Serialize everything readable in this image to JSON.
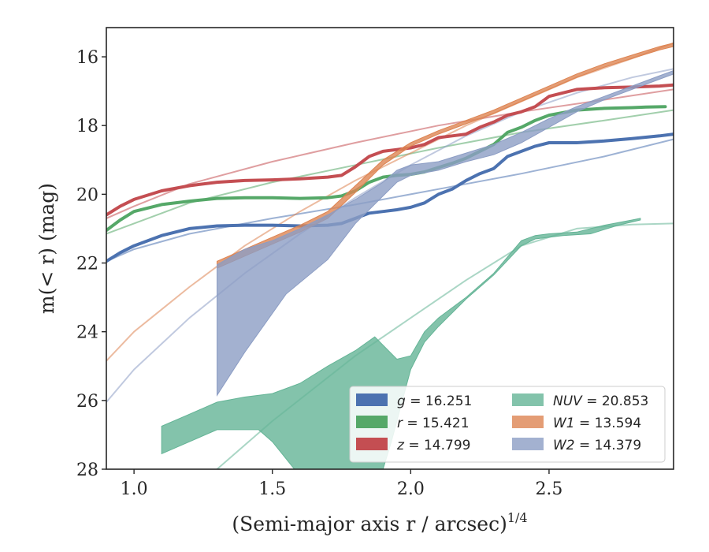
{
  "chart_data": {
    "type": "line",
    "xlabel": "(Semi-major axis r / arcsec)",
    "xlabel_superscript": "1/4",
    "ylabel": "m(< r) (mag)",
    "xlim": [
      0.9,
      2.95
    ],
    "ylim": [
      28,
      15.15
    ],
    "y_inverted": true,
    "x_ticks": [
      1.0,
      1.5,
      2.0,
      2.5
    ],
    "x_tick_labels": [
      "1.0",
      "1.5",
      "2.0",
      "2.5"
    ],
    "y_ticks": [
      16,
      18,
      20,
      22,
      24,
      26,
      28
    ],
    "y_tick_labels": [
      "16",
      "18",
      "20",
      "22",
      "24",
      "26",
      "28"
    ],
    "grid": false,
    "legend_position": "lower-right",
    "legend_columns": 2,
    "series": [
      {
        "name": "g = 16.251",
        "legend_var": "g",
        "legend_value": "= 16.251",
        "color": "#4c72b0",
        "kind": "line",
        "points": [
          [
            0.9,
            21.95
          ],
          [
            0.95,
            21.7
          ],
          [
            1.0,
            21.5
          ],
          [
            1.1,
            21.2
          ],
          [
            1.2,
            21.0
          ],
          [
            1.3,
            20.92
          ],
          [
            1.4,
            20.9
          ],
          [
            1.5,
            20.9
          ],
          [
            1.6,
            20.92
          ],
          [
            1.7,
            20.9
          ],
          [
            1.75,
            20.85
          ],
          [
            1.8,
            20.7
          ],
          [
            1.85,
            20.55
          ],
          [
            1.9,
            20.5
          ],
          [
            1.95,
            20.45
          ],
          [
            2.0,
            20.38
          ],
          [
            2.05,
            20.25
          ],
          [
            2.1,
            20.0
          ],
          [
            2.15,
            19.85
          ],
          [
            2.2,
            19.6
          ],
          [
            2.25,
            19.4
          ],
          [
            2.3,
            19.25
          ],
          [
            2.35,
            18.9
          ],
          [
            2.4,
            18.75
          ],
          [
            2.45,
            18.6
          ],
          [
            2.5,
            18.5
          ],
          [
            2.55,
            18.5
          ],
          [
            2.6,
            18.5
          ],
          [
            2.7,
            18.45
          ],
          [
            2.8,
            18.38
          ],
          [
            2.9,
            18.3
          ],
          [
            2.95,
            18.25
          ]
        ],
        "fit": [
          [
            0.9,
            21.95
          ],
          [
            1.0,
            21.6
          ],
          [
            1.2,
            21.15
          ],
          [
            1.5,
            20.7
          ],
          [
            1.8,
            20.3
          ],
          [
            2.1,
            19.85
          ],
          [
            2.4,
            19.4
          ],
          [
            2.7,
            18.9
          ],
          [
            2.95,
            18.4
          ]
        ]
      },
      {
        "name": "r = 15.421",
        "legend_var": "r",
        "legend_value": "= 15.421",
        "color": "#55a868",
        "kind": "line",
        "points": [
          [
            0.9,
            21.05
          ],
          [
            0.95,
            20.75
          ],
          [
            1.0,
            20.5
          ],
          [
            1.1,
            20.3
          ],
          [
            1.2,
            20.2
          ],
          [
            1.3,
            20.12
          ],
          [
            1.4,
            20.1
          ],
          [
            1.5,
            20.1
          ],
          [
            1.6,
            20.12
          ],
          [
            1.7,
            20.1
          ],
          [
            1.75,
            20.05
          ],
          [
            1.8,
            19.9
          ],
          [
            1.85,
            19.65
          ],
          [
            1.9,
            19.5
          ],
          [
            1.95,
            19.45
          ],
          [
            2.0,
            19.42
          ],
          [
            2.05,
            19.35
          ],
          [
            2.1,
            19.22
          ],
          [
            2.15,
            19.1
          ],
          [
            2.2,
            18.95
          ],
          [
            2.25,
            18.75
          ],
          [
            2.3,
            18.55
          ],
          [
            2.35,
            18.2
          ],
          [
            2.4,
            18.05
          ],
          [
            2.45,
            17.85
          ],
          [
            2.5,
            17.7
          ],
          [
            2.6,
            17.55
          ],
          [
            2.7,
            17.5
          ],
          [
            2.8,
            17.48
          ],
          [
            2.85,
            17.46
          ],
          [
            2.92,
            17.45
          ]
        ],
        "fit": [
          [
            0.9,
            21.15
          ],
          [
            1.0,
            20.85
          ],
          [
            1.2,
            20.25
          ],
          [
            1.5,
            19.65
          ],
          [
            1.8,
            19.15
          ],
          [
            2.1,
            18.65
          ],
          [
            2.4,
            18.2
          ],
          [
            2.7,
            17.85
          ],
          [
            2.95,
            17.55
          ]
        ]
      },
      {
        "name": "z = 14.799",
        "legend_var": "z",
        "legend_value": "= 14.799",
        "color": "#c44e52",
        "kind": "line",
        "points": [
          [
            0.9,
            20.6
          ],
          [
            0.95,
            20.35
          ],
          [
            1.0,
            20.15
          ],
          [
            1.1,
            19.9
          ],
          [
            1.2,
            19.75
          ],
          [
            1.3,
            19.65
          ],
          [
            1.4,
            19.6
          ],
          [
            1.5,
            19.58
          ],
          [
            1.6,
            19.55
          ],
          [
            1.7,
            19.5
          ],
          [
            1.75,
            19.45
          ],
          [
            1.8,
            19.2
          ],
          [
            1.85,
            18.9
          ],
          [
            1.9,
            18.75
          ],
          [
            1.95,
            18.7
          ],
          [
            2.0,
            18.65
          ],
          [
            2.05,
            18.55
          ],
          [
            2.1,
            18.35
          ],
          [
            2.15,
            18.3
          ],
          [
            2.2,
            18.25
          ],
          [
            2.25,
            18.05
          ],
          [
            2.3,
            17.9
          ],
          [
            2.35,
            17.7
          ],
          [
            2.4,
            17.6
          ],
          [
            2.45,
            17.45
          ],
          [
            2.5,
            17.15
          ],
          [
            2.55,
            17.05
          ],
          [
            2.6,
            16.95
          ],
          [
            2.7,
            16.9
          ],
          [
            2.8,
            16.88
          ],
          [
            2.9,
            16.85
          ],
          [
            2.95,
            16.82
          ]
        ],
        "fit": [
          [
            0.9,
            20.7
          ],
          [
            1.0,
            20.35
          ],
          [
            1.2,
            19.7
          ],
          [
            1.5,
            19.05
          ],
          [
            1.8,
            18.5
          ],
          [
            2.1,
            18.0
          ],
          [
            2.4,
            17.6
          ],
          [
            2.7,
            17.25
          ],
          [
            2.95,
            16.95
          ]
        ]
      },
      {
        "name": "NUV = 20.853",
        "legend_var": "NUV",
        "legend_value": "= 20.853",
        "color": "#64b496",
        "kind": "band",
        "upper": [
          [
            1.1,
            26.75
          ],
          [
            1.2,
            26.4
          ],
          [
            1.3,
            26.05
          ],
          [
            1.4,
            25.9
          ],
          [
            1.5,
            25.8
          ],
          [
            1.6,
            25.5
          ],
          [
            1.7,
            25.0
          ],
          [
            1.8,
            24.55
          ],
          [
            1.87,
            24.15
          ],
          [
            1.95,
            24.8
          ],
          [
            2.0,
            24.7
          ],
          [
            2.05,
            24.0
          ],
          [
            2.1,
            23.6
          ],
          [
            2.2,
            23.0
          ],
          [
            2.3,
            22.3
          ],
          [
            2.4,
            21.35
          ],
          [
            2.45,
            21.2
          ],
          [
            2.5,
            21.15
          ],
          [
            2.6,
            21.1
          ],
          [
            2.7,
            20.9
          ],
          [
            2.8,
            20.75
          ],
          [
            2.83,
            20.7
          ]
        ],
        "lower": [
          [
            2.83,
            20.75
          ],
          [
            2.75,
            20.9
          ],
          [
            2.65,
            21.15
          ],
          [
            2.55,
            21.2
          ],
          [
            2.45,
            21.3
          ],
          [
            2.4,
            21.5
          ],
          [
            2.3,
            22.35
          ],
          [
            2.2,
            23.05
          ],
          [
            2.1,
            23.85
          ],
          [
            2.05,
            24.3
          ],
          [
            2.0,
            25.1
          ],
          [
            1.97,
            26.0
          ],
          [
            1.93,
            27.2
          ],
          [
            1.9,
            28.0
          ],
          [
            1.58,
            28.0
          ],
          [
            1.5,
            27.2
          ],
          [
            1.45,
            26.85
          ],
          [
            1.3,
            26.85
          ],
          [
            1.1,
            27.55
          ]
        ],
        "fit": [
          [
            1.3,
            28.0
          ],
          [
            1.5,
            26.6
          ],
          [
            1.8,
            24.7
          ],
          [
            2.0,
            23.6
          ],
          [
            2.2,
            22.5
          ],
          [
            2.4,
            21.5
          ],
          [
            2.6,
            21.0
          ],
          [
            2.8,
            20.88
          ],
          [
            2.95,
            20.85
          ]
        ]
      },
      {
        "name": "W1 = 13.594",
        "legend_var": "W1",
        "legend_value": "= 13.594",
        "color": "#dd8452",
        "kind": "band",
        "upper": [
          [
            1.3,
            21.95
          ],
          [
            1.4,
            21.6
          ],
          [
            1.5,
            21.25
          ],
          [
            1.6,
            20.9
          ],
          [
            1.7,
            20.5
          ],
          [
            1.8,
            19.75
          ],
          [
            1.9,
            19.0
          ],
          [
            2.0,
            18.5
          ],
          [
            2.1,
            18.15
          ],
          [
            2.2,
            17.85
          ],
          [
            2.3,
            17.55
          ],
          [
            2.4,
            17.2
          ],
          [
            2.5,
            16.85
          ],
          [
            2.6,
            16.5
          ],
          [
            2.7,
            16.2
          ],
          [
            2.8,
            15.95
          ],
          [
            2.9,
            15.7
          ],
          [
            2.95,
            15.6
          ]
        ],
        "lower": [
          [
            2.95,
            15.7
          ],
          [
            2.9,
            15.8
          ],
          [
            2.8,
            16.05
          ],
          [
            2.7,
            16.3
          ],
          [
            2.6,
            16.6
          ],
          [
            2.5,
            16.95
          ],
          [
            2.4,
            17.3
          ],
          [
            2.3,
            17.65
          ],
          [
            2.2,
            17.95
          ],
          [
            2.1,
            18.25
          ],
          [
            2.0,
            18.6
          ],
          [
            1.9,
            19.15
          ],
          [
            1.8,
            19.95
          ],
          [
            1.7,
            20.7
          ],
          [
            1.6,
            21.1
          ],
          [
            1.5,
            21.45
          ],
          [
            1.4,
            21.8
          ],
          [
            1.3,
            22.15
          ]
        ],
        "fit": [
          [
            0.9,
            24.85
          ],
          [
            1.0,
            24.0
          ],
          [
            1.2,
            22.7
          ],
          [
            1.4,
            21.5
          ],
          [
            1.6,
            20.5
          ],
          [
            1.8,
            19.6
          ],
          [
            2.0,
            18.8
          ],
          [
            2.2,
            18.0
          ],
          [
            2.4,
            17.3
          ],
          [
            2.6,
            16.6
          ],
          [
            2.8,
            16.05
          ],
          [
            2.95,
            15.6
          ]
        ]
      },
      {
        "name": "W2 = 14.379",
        "legend_var": "W2",
        "legend_value": "= 14.379",
        "color": "#8c9dc4",
        "kind": "band",
        "upper": [
          [
            1.3,
            22.05
          ],
          [
            1.4,
            21.6
          ],
          [
            1.5,
            21.35
          ],
          [
            1.6,
            21.0
          ],
          [
            1.7,
            20.6
          ],
          [
            1.8,
            20.15
          ],
          [
            1.9,
            19.65
          ],
          [
            1.95,
            19.3
          ],
          [
            2.0,
            19.15
          ],
          [
            2.1,
            19.05
          ],
          [
            2.2,
            18.8
          ],
          [
            2.3,
            18.55
          ],
          [
            2.4,
            18.2
          ],
          [
            2.5,
            17.8
          ],
          [
            2.6,
            17.45
          ],
          [
            2.7,
            17.15
          ],
          [
            2.8,
            16.85
          ],
          [
            2.9,
            16.55
          ],
          [
            2.95,
            16.4
          ]
        ],
        "lower": [
          [
            2.95,
            16.5
          ],
          [
            2.9,
            16.65
          ],
          [
            2.8,
            16.95
          ],
          [
            2.7,
            17.25
          ],
          [
            2.6,
            17.6
          ],
          [
            2.5,
            18.05
          ],
          [
            2.4,
            18.5
          ],
          [
            2.3,
            18.85
          ],
          [
            2.2,
            19.05
          ],
          [
            2.1,
            19.3
          ],
          [
            2.0,
            19.45
          ],
          [
            1.95,
            19.65
          ],
          [
            1.9,
            20.05
          ],
          [
            1.8,
            20.85
          ],
          [
            1.7,
            21.9
          ],
          [
            1.55,
            22.9
          ],
          [
            1.4,
            24.6
          ],
          [
            1.3,
            25.85
          ]
        ],
        "fit": [
          [
            0.9,
            26.05
          ],
          [
            1.0,
            25.1
          ],
          [
            1.2,
            23.6
          ],
          [
            1.4,
            22.3
          ],
          [
            1.6,
            21.15
          ],
          [
            1.8,
            20.1
          ],
          [
            2.0,
            19.15
          ],
          [
            2.2,
            18.3
          ],
          [
            2.4,
            17.6
          ],
          [
            2.6,
            17.05
          ],
          [
            2.8,
            16.6
          ],
          [
            2.95,
            16.35
          ]
        ]
      }
    ]
  }
}
